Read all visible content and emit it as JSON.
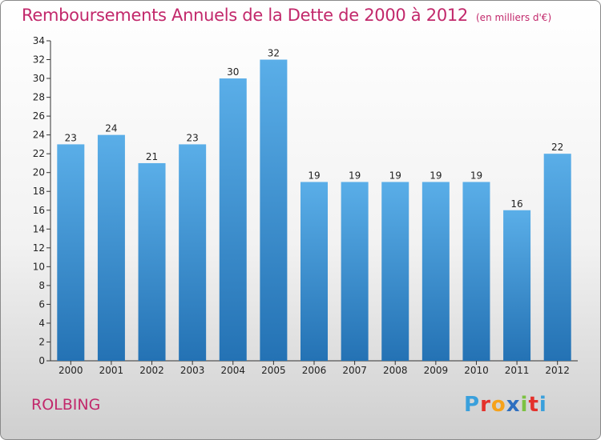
{
  "header": {
    "title": "Remboursements Annuels de la Dette de 2000 à 2012",
    "unit": "(en milliers d'€)"
  },
  "footer": {
    "commune": "ROLBING",
    "logo_letters": [
      "P",
      "r",
      "o",
      "x",
      "i",
      "t",
      "i"
    ],
    "logo_colors": [
      "#3aa0dc",
      "#e4312b",
      "#f6a21b",
      "#2e6fc0",
      "#7cc242",
      "#e4312b",
      "#3aa0dc"
    ]
  },
  "chart_data": {
    "type": "bar",
    "title": "Remboursements Annuels de la Dette de 2000 à 2012",
    "subtitle": "(en milliers d'€)",
    "xlabel": "",
    "ylabel": "",
    "categories": [
      "2000",
      "2001",
      "2002",
      "2003",
      "2004",
      "2005",
      "2006",
      "2007",
      "2008",
      "2009",
      "2010",
      "2011",
      "2012"
    ],
    "values": [
      23,
      24,
      21,
      23,
      30,
      32,
      19,
      19,
      19,
      19,
      19,
      16,
      22
    ],
    "ylim": [
      0,
      34
    ],
    "yticks": [
      0,
      2,
      4,
      6,
      8,
      10,
      12,
      14,
      16,
      18,
      20,
      22,
      24,
      26,
      28,
      30,
      32,
      34
    ],
    "grid": false,
    "bar_color_top": "#5aaee8",
    "bar_color_bottom": "#2472b4"
  }
}
